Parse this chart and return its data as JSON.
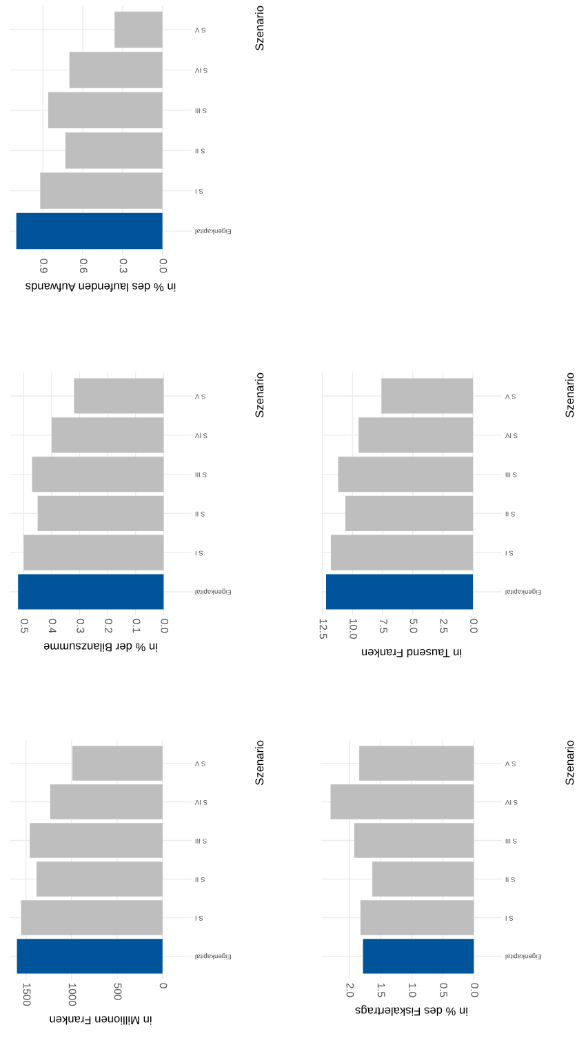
{
  "chart_data": [
    {
      "type": "bar",
      "orientation": "horizontal",
      "categories": [
        "S V",
        "S IV",
        "S III",
        "S II",
        "S I",
        "Eigenkapital"
      ],
      "xlabel": "in % des laufenden Aufwands",
      "ylabel": "Szenario",
      "xlim": [
        1.15,
        -0.22
      ],
      "xticks": [
        {
          "value": 0,
          "label": "0.0"
        },
        0.3,
        0.6,
        0.9
      ],
      "grid": true,
      "values": [
        0.36,
        0.7,
        0.86,
        0.73,
        0.92,
        1.1
      ],
      "colors": [
        "#bebebe",
        "#bebebe",
        "#bebebe",
        "#bebebe",
        "#bebebe",
        "#00559a"
      ]
    },
    {
      "type": "bar",
      "orientation": "horizontal",
      "categories": [
        "S V",
        "S IV",
        "S III",
        "S II",
        "S I",
        "Eigenkapital"
      ],
      "xlabel": "in % der Bilanzsumme",
      "ylabel": "Szenario",
      "xlim": [
        0.55,
        -0.1
      ],
      "xticks": [
        {
          "value": 0,
          "label": "0.0"
        },
        0.1,
        0.2,
        0.3,
        0.4,
        0.5
      ],
      "grid": true,
      "values": [
        0.32,
        0.4,
        0.47,
        0.45,
        0.5,
        0.52
      ],
      "colors": [
        "#bebebe",
        "#bebebe",
        "#bebebe",
        "#bebebe",
        "#bebebe",
        "#00559a"
      ]
    },
    {
      "type": "bar",
      "orientation": "horizontal",
      "categories": [
        "S V",
        "S IV",
        "S III",
        "S II",
        "S I",
        "Eigenkapital"
      ],
      "xlabel": "in Tausend Franken",
      "ylabel": "Szenario",
      "xlim": [
        12.6,
        -2.4
      ],
      "xticks": [
        {
          "value": 0,
          "label": "0.0"
        },
        2.5,
        {
          "value": 5,
          "label": "5.0"
        },
        7.5,
        {
          "value": 10,
          "label": "10.0"
        },
        12.5
      ],
      "grid": true,
      "values": [
        7.6,
        9.5,
        11.2,
        10.6,
        11.8,
        12.2
      ],
      "colors": [
        "#bebebe",
        "#bebebe",
        "#bebebe",
        "#bebebe",
        "#bebebe",
        "#00559a"
      ]
    },
    {
      "type": "bar",
      "orientation": "horizontal",
      "categories": [
        "S V",
        "S IV",
        "S III",
        "S II",
        "S I",
        "Eigenkapital"
      ],
      "xlabel": "in Millionen Franken",
      "ylabel": "Szenario",
      "xlim": [
        1680,
        -320
      ],
      "xticks": [
        0,
        500,
        1000,
        1500
      ],
      "grid": true,
      "values": [
        990,
        1235,
        1460,
        1385,
        1555,
        1600
      ],
      "colors": [
        "#bebebe",
        "#bebebe",
        "#bebebe",
        "#bebebe",
        "#bebebe",
        "#00559a"
      ]
    },
    {
      "type": "bar",
      "orientation": "horizontal",
      "categories": [
        "S V",
        "S IV",
        "S III",
        "S II",
        "S I",
        "Eigenkapital"
      ],
      "xlabel": "in % des Fiskalertrags",
      "ylabel": "Szenario",
      "xlim": [
        2.45,
        -0.45
      ],
      "xticks": [
        {
          "value": 0,
          "label": "0.0"
        },
        0.5,
        {
          "value": 1,
          "label": "1.0"
        },
        1.5,
        {
          "value": 2,
          "label": "2.0"
        }
      ],
      "grid": true,
      "values": [
        1.84,
        2.3,
        1.92,
        1.63,
        1.82,
        1.78
      ],
      "colors": [
        "#bebebe",
        "#bebebe",
        "#bebebe",
        "#bebebe",
        "#bebebe",
        "#00559a"
      ]
    }
  ]
}
